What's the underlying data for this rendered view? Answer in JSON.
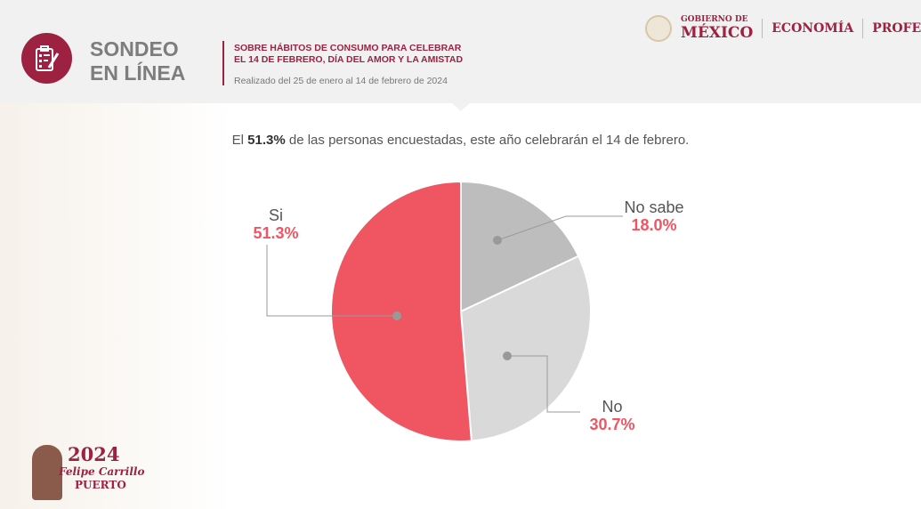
{
  "header": {
    "title_line1": "SONDEO",
    "title_line2": "EN LÍNEA",
    "subtitle_line1": "SOBRE HÁBITOS DE CONSUMO PARA CELEBRAR",
    "subtitle_line2": "EL 14 DE FEBRERO, DÍA DEL AMOR Y LA AMISTAD",
    "date": "Realizado del 25 de enero al 14 de febrero de 2024"
  },
  "logos": {
    "gob_line1": "GOBIERNO DE",
    "gob_line2": "MÉXICO",
    "economia": "ECONOMÍA",
    "profeco": "PROFECO"
  },
  "headline": {
    "pre": "El ",
    "bold": "51.3%",
    "post": " de las personas encuestadas, este año celebrarán el 14 de febrero."
  },
  "footer": {
    "year": "2024",
    "name1": "Felipe Carrillo",
    "name2": "PUERTO"
  },
  "chart_data": {
    "type": "pie",
    "title": "El 51.3% de las personas encuestadas, este año celebrarán el 14 de febrero.",
    "slices": [
      {
        "label": "No sabe",
        "value": 18.0,
        "value_label": "18.0%",
        "color": "#bdbdbd"
      },
      {
        "label": "No",
        "value": 30.7,
        "value_label": "30.7%",
        "color": "#d9d9d9"
      },
      {
        "label": "Si",
        "value": 51.3,
        "value_label": "51.3%",
        "color": "#f05562"
      }
    ]
  }
}
